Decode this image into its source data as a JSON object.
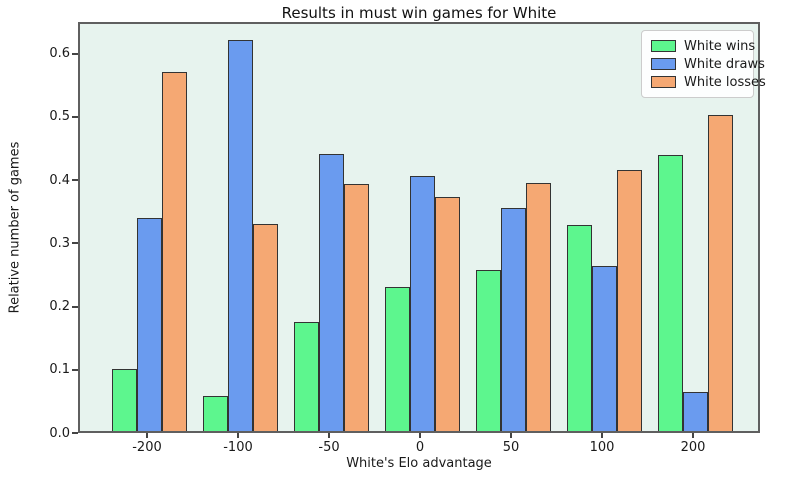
{
  "chart_data": {
    "type": "bar",
    "title": "Results in must win games for White",
    "xlabel": "White's Elo advantage",
    "ylabel": "Relative number of games",
    "categories": [
      "-200",
      "-100",
      "-50",
      "0",
      "50",
      "100",
      "200"
    ],
    "series": [
      {
        "name": "White wins",
        "color": "#5DF68E",
        "values": [
          0.098,
          0.055,
          0.172,
          0.227,
          0.255,
          0.326,
          0.437
        ]
      },
      {
        "name": "White draws",
        "color": "#6A9BEF",
        "values": [
          0.337,
          0.619,
          0.438,
          0.404,
          0.353,
          0.261,
          0.062
        ]
      },
      {
        "name": "White losses",
        "color": "#F5A873",
        "values": [
          0.567,
          0.327,
          0.39,
          0.37,
          0.392,
          0.413,
          0.5
        ]
      }
    ],
    "ylim": [
      0,
      0.65
    ],
    "yticks": [
      "0.0",
      "0.1",
      "0.2",
      "0.3",
      "0.4",
      "0.5",
      "0.6"
    ],
    "grid": false,
    "legend_position": "upper right",
    "colors": {
      "plot_background": "#E7F3EE",
      "figure_background": "#FFFFFF",
      "bar_edge": "#333333",
      "spine": "#5F5F5F",
      "text": "#1A1A1A"
    }
  }
}
